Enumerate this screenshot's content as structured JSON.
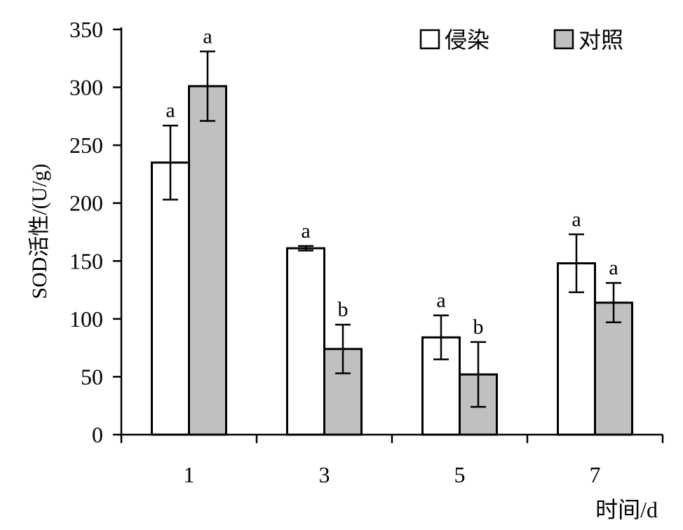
{
  "chart_data": {
    "type": "bar",
    "categories": [
      "1",
      "3",
      "5",
      "7"
    ],
    "series": [
      {
        "name": "侵染",
        "values": [
          235,
          161,
          84,
          148
        ],
        "errors": [
          32,
          2,
          19,
          25
        ],
        "labels": [
          "a",
          "a",
          "a",
          "a"
        ],
        "color": "#ffffff"
      },
      {
        "name": "对照",
        "values": [
          301,
          74,
          52,
          114
        ],
        "errors": [
          30,
          21,
          28,
          17
        ],
        "labels": [
          "a",
          "b",
          "b",
          "a"
        ],
        "color": "#c0c0c0"
      }
    ],
    "xlabel": "时间/d",
    "ylabel": "SOD活性/(U/g)",
    "ylim": [
      0,
      350
    ],
    "yticks": [
      0,
      50,
      100,
      150,
      200,
      250,
      300,
      350
    ],
    "grid": false,
    "legend_position": "top-right"
  }
}
